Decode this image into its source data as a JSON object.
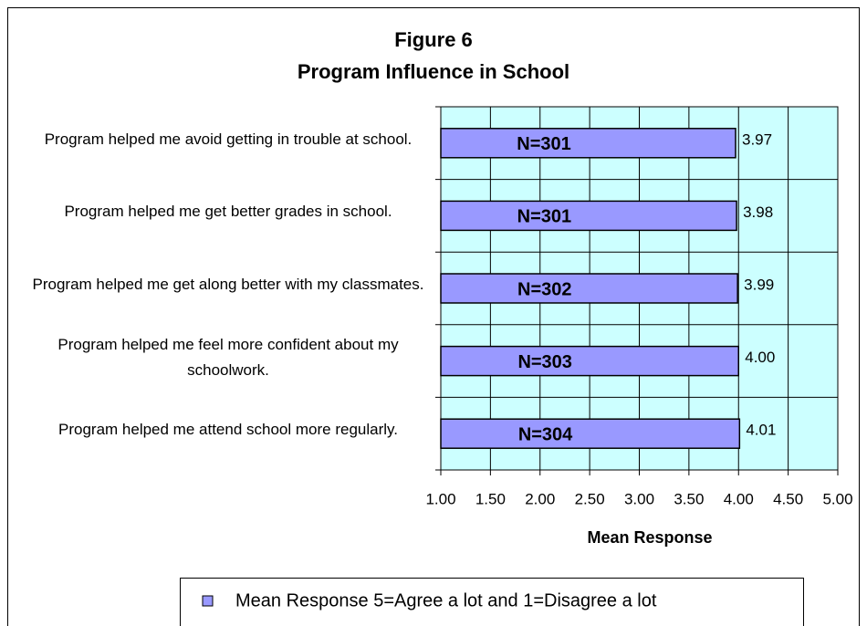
{
  "chart_data": {
    "type": "barh",
    "title": "Figure 6",
    "subtitle": "Program Influence in School",
    "categories": [
      "Program helped me avoid getting in trouble at school.",
      "Program helped me get better grades in school.",
      "Program helped me get along better with my classmates.",
      "Program helped me feel more confident about my schoolwork.",
      "Program helped me attend school more regularly."
    ],
    "series": [
      {
        "name": "Mean Response 5=Agree a lot and 1=Disagree a lot",
        "color": "#9999ff",
        "values": [
          3.97,
          3.98,
          3.99,
          4.0,
          4.01
        ],
        "value_labels": [
          "3.97",
          "3.98",
          "3.99",
          "4.00",
          "4.01"
        ],
        "bar_annotations": [
          "N=301",
          "N=301",
          "N=302",
          "N=303",
          "N=304"
        ]
      }
    ],
    "xlabel": "Mean Response",
    "xlim": [
      1,
      5
    ],
    "xticks": [
      {
        "value": 1,
        "label": "1.00"
      },
      {
        "value": 1.5,
        "label": "1.50"
      },
      {
        "value": 2,
        "label": "2.00"
      },
      {
        "value": 2.5,
        "label": "2.50"
      },
      {
        "value": 3,
        "label": "3.00"
      },
      {
        "value": 3.5,
        "label": "3.50"
      },
      {
        "value": 4,
        "label": "4.00"
      },
      {
        "value": 4.5,
        "label": "4.50"
      },
      {
        "value": 5,
        "label": "5.00"
      }
    ],
    "grid": true,
    "legend": "bottom",
    "plot_background": "#ccffff"
  }
}
